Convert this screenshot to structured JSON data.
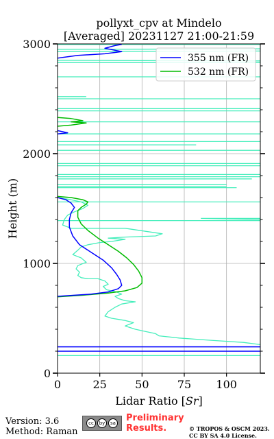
{
  "chart_data": {
    "type": "line",
    "title_lines": [
      "pollyxt_cpv at Mindelo",
      "[Averaged] 20231127 21:00-21:59"
    ],
    "xlabel": "Lidar Ratio [$Sr$]",
    "ylabel": "Height (m)",
    "xlim": [
      0,
      120
    ],
    "ylim": [
      0,
      3000
    ],
    "xticks": [
      0,
      25,
      50,
      75,
      100
    ],
    "yticks": [
      0,
      1000,
      2000,
      3000
    ],
    "grid": true,
    "legend_position": "top-right",
    "series": [
      {
        "name": "355 nm (FR)",
        "color": "#0000ff",
        "points": [
          [
            0,
            2870
          ],
          [
            12,
            2895
          ],
          [
            28,
            2910
          ],
          [
            38,
            2930
          ],
          [
            28,
            2960
          ],
          [
            34,
            2985
          ],
          [
            38,
            2995
          ],
          null,
          [
            0,
            2210
          ],
          [
            6,
            2190
          ],
          [
            0,
            2180
          ],
          null,
          [
            0,
            1600
          ],
          [
            5,
            1580
          ],
          [
            8,
            1550
          ],
          [
            10,
            1510
          ],
          [
            8,
            1460
          ],
          [
            7,
            1400
          ],
          [
            7,
            1330
          ],
          [
            9,
            1250
          ],
          [
            13,
            1170
          ],
          [
            20,
            1100
          ],
          [
            27,
            1030
          ],
          [
            32,
            960
          ],
          [
            35,
            900
          ],
          [
            37,
            850
          ],
          [
            38,
            800
          ],
          [
            36,
            770
          ],
          [
            30,
            740
          ],
          [
            20,
            720
          ],
          [
            10,
            710
          ],
          [
            0,
            700
          ],
          null,
          [
            0,
            240
          ],
          [
            120,
            240
          ],
          null,
          [
            0,
            200
          ],
          [
            120,
            200
          ]
        ]
      },
      {
        "name": "532 nm (FR)",
        "color": "#00bb00",
        "points": [
          [
            0,
            2330
          ],
          [
            8,
            2320
          ],
          [
            15,
            2300
          ],
          [
            8,
            2290
          ],
          [
            17,
            2280
          ],
          [
            8,
            2260
          ],
          [
            0,
            2250
          ],
          null,
          [
            0,
            1610
          ],
          [
            8,
            1600
          ],
          [
            15,
            1580
          ],
          [
            18,
            1560
          ],
          [
            17,
            1540
          ],
          [
            14,
            1510
          ],
          [
            12,
            1480
          ],
          [
            12,
            1420
          ],
          [
            14,
            1360
          ],
          [
            18,
            1300
          ],
          [
            24,
            1230
          ],
          [
            30,
            1170
          ],
          [
            36,
            1110
          ],
          [
            41,
            1050
          ],
          [
            45,
            990
          ],
          [
            48,
            930
          ],
          [
            50,
            870
          ],
          [
            50,
            820
          ],
          [
            47,
            780
          ],
          [
            40,
            750
          ],
          [
            30,
            730
          ],
          [
            15,
            710
          ],
          [
            0,
            695
          ]
        ]
      },
      {
        "name": "",
        "color": "#44eebb",
        "points": [
          [
            0,
            2995
          ],
          [
            120,
            2995
          ],
          null,
          [
            0,
            2950
          ],
          [
            120,
            2955
          ],
          null,
          [
            0,
            2930
          ],
          [
            120,
            2935
          ],
          null,
          [
            0,
            2850
          ],
          [
            120,
            2845
          ],
          null,
          [
            0,
            2830
          ],
          [
            120,
            2830
          ],
          null,
          [
            0,
            2700
          ],
          [
            120,
            2700
          ],
          null,
          [
            0,
            2520
          ],
          [
            17,
            2520
          ],
          null,
          [
            0,
            2500
          ],
          [
            120,
            2500
          ],
          null,
          [
            0,
            2410
          ],
          [
            120,
            2410
          ],
          null,
          [
            0,
            2390
          ],
          [
            120,
            2390
          ],
          null,
          [
            0,
            2290
          ],
          [
            120,
            2290
          ],
          null,
          [
            0,
            2180
          ],
          [
            120,
            2180
          ],
          null,
          [
            0,
            2110
          ],
          [
            120,
            2110
          ],
          null,
          [
            0,
            2080
          ],
          [
            82,
            2080
          ],
          null,
          [
            0,
            2030
          ],
          [
            120,
            2030
          ],
          null,
          [
            0,
            1910
          ],
          [
            120,
            1910
          ],
          null,
          [
            0,
            1890
          ],
          [
            120,
            1890
          ],
          null,
          [
            0,
            1810
          ],
          [
            120,
            1810
          ],
          null,
          [
            0,
            1790
          ],
          [
            120,
            1790
          ],
          null,
          [
            0,
            1770
          ],
          [
            115,
            1770
          ],
          null,
          [
            0,
            1720
          ],
          [
            100,
            1720
          ],
          null,
          [
            0,
            1700
          ],
          [
            100,
            1700
          ],
          null,
          [
            0,
            1690
          ],
          [
            106,
            1690
          ],
          null,
          [
            0,
            1560
          ],
          [
            120,
            1560
          ],
          null,
          [
            120,
            1410
          ],
          [
            85,
            1410
          ],
          [
            120,
            1400
          ],
          null,
          [
            0,
            1390
          ],
          [
            120,
            1390
          ],
          null,
          [
            0,
            1600
          ],
          [
            8,
            1580
          ],
          [
            14,
            1560
          ],
          [
            18,
            1530
          ],
          [
            15,
            1500
          ],
          [
            10,
            1470
          ],
          [
            6,
            1440
          ],
          [
            4,
            1400
          ],
          [
            3,
            1350
          ],
          [
            8,
            1320
          ],
          [
            40,
            1320
          ],
          [
            62,
            1270
          ],
          [
            58,
            1250
          ],
          [
            40,
            1240
          ],
          [
            30,
            1230
          ],
          [
            40,
            1220
          ],
          [
            32,
            1200
          ],
          [
            25,
            1190
          ],
          [
            18,
            1170
          ],
          [
            14,
            1150
          ],
          [
            12,
            1120
          ],
          [
            9,
            1080
          ],
          [
            14,
            1050
          ],
          [
            17,
            1010
          ],
          [
            12,
            980
          ],
          [
            11,
            950
          ],
          [
            13,
            920
          ],
          [
            12,
            890
          ],
          [
            14,
            870
          ],
          [
            18,
            860
          ],
          [
            24,
            860
          ],
          [
            28,
            840
          ],
          [
            30,
            810
          ],
          [
            27,
            790
          ],
          [
            29,
            760
          ],
          [
            35,
            740
          ],
          [
            38,
            720
          ],
          [
            34,
            700
          ],
          [
            36,
            680
          ],
          [
            40,
            660
          ],
          [
            46,
            650
          ],
          [
            38,
            630
          ],
          [
            34,
            600
          ],
          [
            30,
            560
          ],
          [
            28,
            520
          ],
          [
            32,
            500
          ],
          [
            40,
            480
          ],
          [
            45,
            460
          ],
          [
            40,
            430
          ],
          [
            46,
            400
          ],
          [
            52,
            380
          ],
          [
            58,
            360
          ],
          [
            60,
            340
          ],
          [
            72,
            320
          ],
          [
            90,
            300
          ],
          [
            110,
            280
          ],
          [
            120,
            260
          ],
          null,
          [
            0,
            160
          ],
          [
            120,
            160
          ]
        ]
      }
    ]
  },
  "footer": {
    "version": "Version: 3.6",
    "method": "Method: Raman",
    "license_icons": [
      "cc",
      "by",
      "sa"
    ],
    "preliminary_line1": "Preliminary",
    "preliminary_line2": "Results.",
    "copyright_line1": "© TROPOS & OSCM 2023.",
    "copyright_line2": "CC BY SA 4.0 License."
  }
}
